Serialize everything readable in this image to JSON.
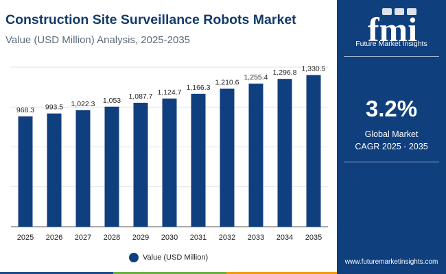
{
  "header": {
    "title": "Construction Site Surveillance Robots Market",
    "subtitle": "Value (USD Million) Analysis, 2025-2035"
  },
  "chart_data": {
    "type": "bar",
    "title": "Construction Site Surveillance Robots Market",
    "subtitle": "Value (USD Million) Analysis, 2025-2035",
    "categories": [
      "2025",
      "2026",
      "2027",
      "2028",
      "2029",
      "2030",
      "2031",
      "2032",
      "2033",
      "2034",
      "2035"
    ],
    "values": [
      968.3,
      993.5,
      1022.3,
      1053,
      1087.7,
      1124.7,
      1166.3,
      1210.6,
      1255.4,
      1296.8,
      1330.5
    ],
    "value_labels": [
      "968.3",
      "993.5",
      "1,022.3",
      "1,053",
      "1,087.7",
      "1,124.7",
      "1,166.3",
      "1,210.6",
      "1,255.4",
      "1,296.8",
      "1,330.5"
    ],
    "series_name": "Value (USD Million)",
    "xlabel": "",
    "ylabel": "",
    "ylim": [
      0,
      1400
    ],
    "grid": true,
    "legend_position": "bottom",
    "bar_color": "#103f7f"
  },
  "legend": {
    "label": "Value (USD Million)"
  },
  "side_panel": {
    "brand": "Future Market Insights",
    "cagr_value": "3.2%",
    "cagr_line1": "Global Market",
    "cagr_line2": "CAGR 2025 - 2035",
    "website": "www.futuremarketinsights.com"
  },
  "colors": {
    "title": "#123a6b",
    "panel": "#0f3f7d",
    "bar": "#103f7f",
    "strip": [
      "#1f4f8f",
      "#6cb33f",
      "#f39c12",
      "#1f4f8f"
    ]
  }
}
